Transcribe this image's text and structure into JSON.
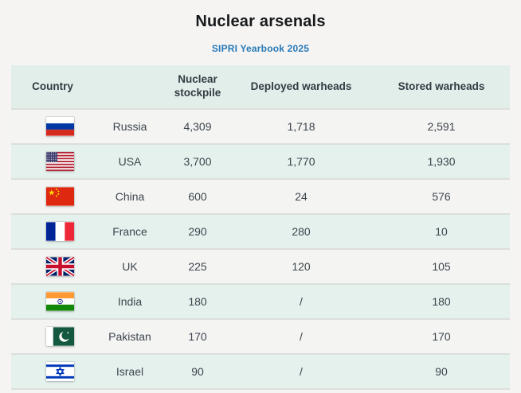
{
  "header": {
    "title": "Nuclear arsenals",
    "subtitle": "SIPRI Yearbook 2025"
  },
  "table": {
    "columns": [
      "Country",
      "Nuclear stockpile",
      "Deployed warheads",
      "Stored warheads"
    ],
    "rows": [
      {
        "flag": "ru",
        "flag_name": "russia-flag-icon",
        "country": "Russia",
        "stockpile": "4,309",
        "deployed": "1,718",
        "stored": "2,591"
      },
      {
        "flag": "us",
        "flag_name": "usa-flag-icon",
        "country": "USA",
        "stockpile": "3,700",
        "deployed": "1,770",
        "stored": "1,930"
      },
      {
        "flag": "cn",
        "flag_name": "china-flag-icon",
        "country": "China",
        "stockpile": "600",
        "deployed": "24",
        "stored": "576"
      },
      {
        "flag": "fr",
        "flag_name": "france-flag-icon",
        "country": "France",
        "stockpile": "290",
        "deployed": "280",
        "stored": "10"
      },
      {
        "flag": "gb",
        "flag_name": "uk-flag-icon",
        "country": "UK",
        "stockpile": "225",
        "deployed": "120",
        "stored": "105"
      },
      {
        "flag": "in",
        "flag_name": "india-flag-icon",
        "country": "India",
        "stockpile": "180",
        "deployed": "/",
        "stored": "180"
      },
      {
        "flag": "pk",
        "flag_name": "pakistan-flag-icon",
        "country": "Pakistan",
        "stockpile": "170",
        "deployed": "/",
        "stored": "170"
      },
      {
        "flag": "il",
        "flag_name": "israel-flag-icon",
        "country": "Israel",
        "stockpile": "90",
        "deployed": "/",
        "stored": "90"
      }
    ]
  },
  "colors": {
    "page_background": "#f5f4f2",
    "header_background": "#e2eeea",
    "row_mint": "#e5f1ed",
    "row_plain": "#f4f4f2",
    "subtitle_blue": "#2779b8",
    "text": "#3d454d"
  }
}
